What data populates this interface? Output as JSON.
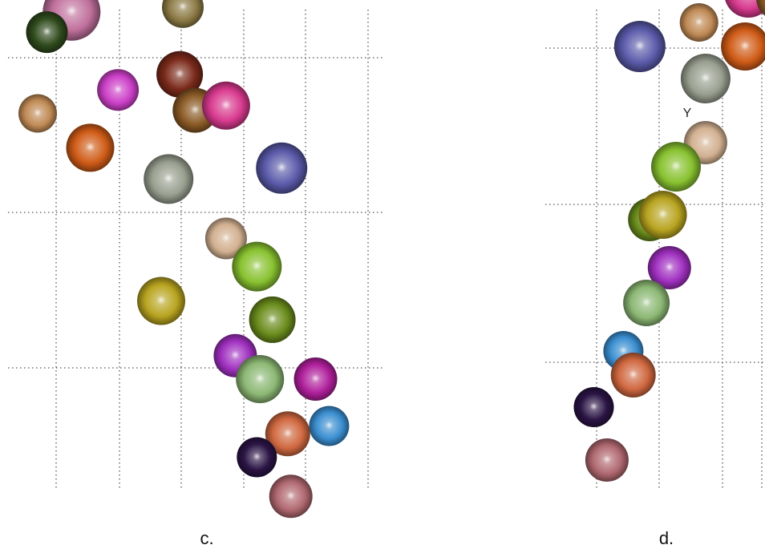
{
  "chart_data": [
    {
      "type": "scatter",
      "panel_label": "c.",
      "grid": true,
      "grid_style": "dotted",
      "axes_visible": false,
      "points": [
        {
          "x": 0.55,
          "y": 2.95,
          "size": 36,
          "color": "#c0709c"
        },
        {
          "x": 0.15,
          "y": 2.82,
          "size": 26,
          "color": "#2f4a1c"
        },
        {
          "x": 2.35,
          "y": 2.98,
          "size": 26,
          "color": "#8c7a45"
        },
        {
          "x": 1.3,
          "y": 2.45,
          "size": 26,
          "color": "#cc40c8"
        },
        {
          "x": 2.3,
          "y": 2.55,
          "size": 29,
          "color": "#7a2a1a"
        },
        {
          "x": 2.55,
          "y": 2.32,
          "size": 28,
          "color": "#8a5a25"
        },
        {
          "x": 3.05,
          "y": 2.35,
          "size": 30,
          "color": "#d83a8e"
        },
        {
          "x": 0.0,
          "y": 2.3,
          "size": 24,
          "color": "#c08a55"
        },
        {
          "x": 0.85,
          "y": 2.08,
          "size": 30,
          "color": "#d05c18"
        },
        {
          "x": 2.12,
          "y": 1.88,
          "size": 31,
          "color": "#9aa090"
        },
        {
          "x": 3.95,
          "y": 1.95,
          "size": 32,
          "color": "#5a5aaa"
        },
        {
          "x": 3.05,
          "y": 1.5,
          "size": 26,
          "color": "#d2b090"
        },
        {
          "x": 3.55,
          "y": 1.32,
          "size": 31,
          "color": "#88c230"
        },
        {
          "x": 2.0,
          "y": 1.1,
          "size": 30,
          "color": "#b8a420"
        },
        {
          "x": 3.8,
          "y": 0.98,
          "size": 29,
          "color": "#6a8c1c"
        },
        {
          "x": 3.2,
          "y": 0.75,
          "size": 27,
          "color": "#a030c0"
        },
        {
          "x": 3.6,
          "y": 0.6,
          "size": 30,
          "color": "#8cb874"
        },
        {
          "x": 4.5,
          "y": 0.6,
          "size": 27,
          "color": "#b0209c"
        },
        {
          "x": 4.72,
          "y": 0.3,
          "size": 25,
          "color": "#3a8ed0"
        },
        {
          "x": 4.05,
          "y": 0.25,
          "size": 28,
          "color": "#d06840"
        },
        {
          "x": 3.55,
          "y": 0.1,
          "size": 25,
          "color": "#2a1444"
        },
        {
          "x": 4.1,
          "y": -0.15,
          "size": 27,
          "color": "#b06870"
        }
      ]
    },
    {
      "type": "scatter",
      "panel_label": "d.",
      "grid": true,
      "grid_style": "dotted",
      "axes_visible": false,
      "annotations": [
        {
          "text": "Y"
        }
      ],
      "points": [
        {
          "x": 0.3,
          "y": 2.9,
          "size": 36,
          "color": "#c0709c"
        },
        {
          "x": 1.1,
          "y": 3.05,
          "size": 27,
          "color": "#8c7a45"
        },
        {
          "x": 0.65,
          "y": 2.75,
          "size": 26,
          "color": "#2f4a1c"
        },
        {
          "x": 2.45,
          "y": 2.5,
          "size": 28,
          "color": "#7a2a1a"
        },
        {
          "x": 1.6,
          "y": 2.33,
          "size": 30,
          "color": "#d83a8e"
        },
        {
          "x": 2.05,
          "y": 2.3,
          "size": 27,
          "color": "#8a5a25"
        },
        {
          "x": 2.55,
          "y": 2.38,
          "size": 25,
          "color": "#cc40c8"
        },
        {
          "x": 0.85,
          "y": 2.15,
          "size": 24,
          "color": "#c08a55"
        },
        {
          "x": -0.05,
          "y": 2.0,
          "size": 32,
          "color": "#5a5aaa"
        },
        {
          "x": 1.55,
          "y": 2.0,
          "size": 30,
          "color": "#d05c18"
        },
        {
          "x": 0.95,
          "y": 1.8,
          "size": 31,
          "color": "#9aa090"
        },
        {
          "x": 0.95,
          "y": 1.4,
          "size": 27,
          "color": "#d2b090"
        },
        {
          "x": 0.5,
          "y": 1.25,
          "size": 31,
          "color": "#88c230"
        },
        {
          "x": 0.1,
          "y": 0.92,
          "size": 27,
          "color": "#6a8c1c"
        },
        {
          "x": 0.3,
          "y": 0.95,
          "size": 30,
          "color": "#b8a420"
        },
        {
          "x": 0.4,
          "y": 0.62,
          "size": 27,
          "color": "#a030c0"
        },
        {
          "x": 0.05,
          "y": 0.4,
          "size": 29,
          "color": "#8cb874"
        },
        {
          "x": -0.3,
          "y": 0.1,
          "size": 25,
          "color": "#3a8ed0"
        },
        {
          "x": -0.15,
          "y": -0.05,
          "size": 28,
          "color": "#d06840"
        },
        {
          "x": -0.75,
          "y": -0.25,
          "size": 25,
          "color": "#2a1444"
        },
        {
          "x": -0.55,
          "y": -0.58,
          "size": 27,
          "color": "#b06870"
        }
      ]
    }
  ],
  "captions": {
    "c": "c.",
    "d": "d."
  }
}
